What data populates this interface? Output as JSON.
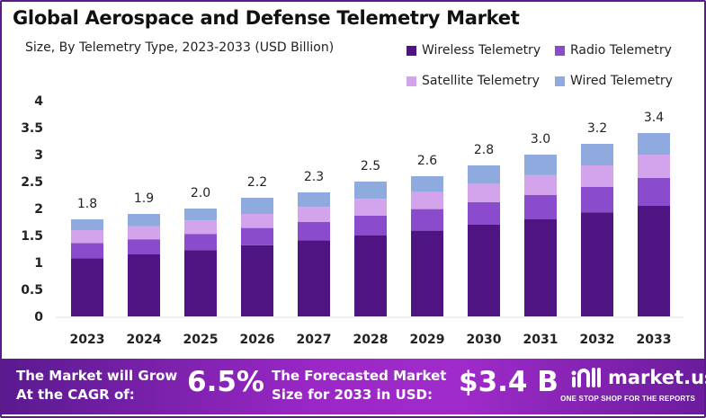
{
  "chart_data": {
    "type": "bar",
    "stacked": true,
    "title": "Global Aerospace and Defense Telemetry Market",
    "subtitle": "Size, By Telemetry Type, 2023-2033 (USD Billion)",
    "xlabel": "",
    "ylabel": "",
    "ylim": [
      0,
      4
    ],
    "yticks": [
      "0",
      "0.5",
      "1",
      "1.5",
      "2",
      "2.5",
      "3",
      "3.5",
      "4"
    ],
    "categories": [
      "2023",
      "2024",
      "2025",
      "2026",
      "2027",
      "2028",
      "2029",
      "2030",
      "2031",
      "2032",
      "2033"
    ],
    "totals": [
      "1.8",
      "1.9",
      "2.0",
      "2.2",
      "2.3",
      "2.5",
      "2.6",
      "2.8",
      "3.0",
      "3.2",
      "3.4"
    ],
    "grid": false,
    "legend_placement": "top-right",
    "series": [
      {
        "name": "Wireless Telemetry",
        "color": "#4e1582",
        "values": [
          1.08,
          1.15,
          1.23,
          1.32,
          1.41,
          1.5,
          1.59,
          1.7,
          1.8,
          1.93,
          2.05
        ]
      },
      {
        "name": "Radio Telemetry",
        "color": "#8a4ccc",
        "values": [
          0.28,
          0.28,
          0.3,
          0.32,
          0.34,
          0.37,
          0.4,
          0.42,
          0.45,
          0.47,
          0.52
        ]
      },
      {
        "name": "Satellite Telemetry",
        "color": "#d3a4ec",
        "values": [
          0.24,
          0.24,
          0.25,
          0.26,
          0.28,
          0.31,
          0.32,
          0.34,
          0.37,
          0.4,
          0.43
        ]
      },
      {
        "name": "Wired Telemetry",
        "color": "#8eaadf",
        "values": [
          0.2,
          0.23,
          0.22,
          0.3,
          0.27,
          0.32,
          0.29,
          0.34,
          0.38,
          0.4,
          0.4
        ]
      }
    ]
  },
  "banner": {
    "cagr_label_1": "The Market will Grow",
    "cagr_label_2": "At the CAGR of:",
    "cagr_value": "6.5%",
    "forecast_label_1": "The Forecasted Market",
    "forecast_label_2": "Size for 2033 in USD:",
    "forecast_value": "$3.4 B",
    "logo_text": "market.us",
    "logo_tagline": "ONE STOP SHOP FOR THE REPORTS"
  }
}
